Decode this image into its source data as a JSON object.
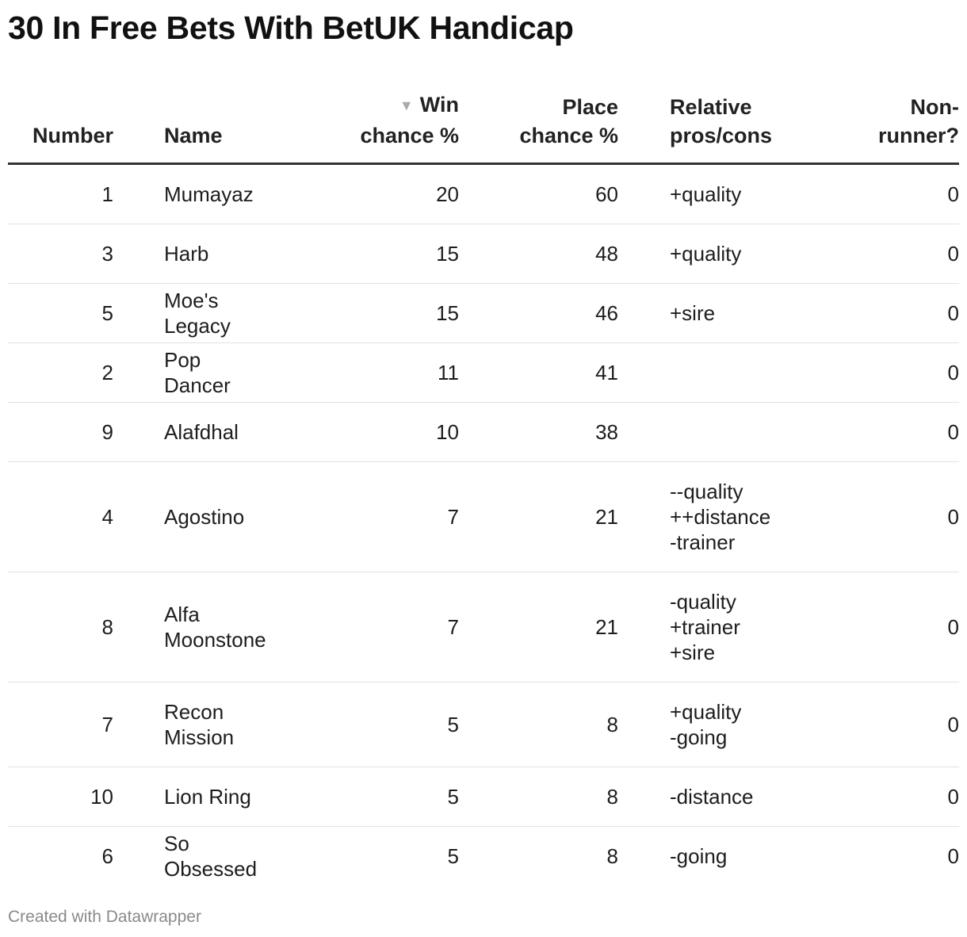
{
  "title": "30 In Free Bets With BetUK Handicap",
  "footer": "Created with Datawrapper",
  "chart_data": {
    "type": "table",
    "title": "30 In Free Bets With BetUK Handicap",
    "sorted_by": "Win chance %",
    "sort_direction": "descending",
    "columns": [
      {
        "key": "number",
        "label_lines": [
          "Number"
        ]
      },
      {
        "key": "name",
        "label_lines": [
          "Name"
        ]
      },
      {
        "key": "win",
        "label_lines": [
          "Win",
          "chance %"
        ]
      },
      {
        "key": "place",
        "label_lines": [
          "Place",
          "chance %"
        ]
      },
      {
        "key": "pros",
        "label_lines": [
          "Relative",
          "pros/cons"
        ]
      },
      {
        "key": "nr",
        "label_lines": [
          "Non-",
          "runner?"
        ]
      }
    ],
    "rows": [
      {
        "number": 1,
        "name": [
          "Mumayaz"
        ],
        "win": 20,
        "place": 60,
        "pros": [
          "+quality"
        ],
        "nr": 0
      },
      {
        "number": 3,
        "name": [
          "Harb"
        ],
        "win": 15,
        "place": 48,
        "pros": [
          "+quality"
        ],
        "nr": 0
      },
      {
        "number": 5,
        "name": [
          "Moe's Legacy"
        ],
        "win": 15,
        "place": 46,
        "pros": [
          "+sire"
        ],
        "nr": 0
      },
      {
        "number": 2,
        "name": [
          "Pop Dancer"
        ],
        "win": 11,
        "place": 41,
        "pros": [],
        "nr": 0
      },
      {
        "number": 9,
        "name": [
          "Alafdhal"
        ],
        "win": 10,
        "place": 38,
        "pros": [],
        "nr": 0
      },
      {
        "number": 4,
        "name": [
          "Agostino"
        ],
        "win": 7,
        "place": 21,
        "pros": [
          "--quality",
          "++distance",
          "-trainer"
        ],
        "nr": 0
      },
      {
        "number": 8,
        "name": [
          "Alfa",
          "Moonstone"
        ],
        "win": 7,
        "place": 21,
        "pros": [
          "-quality",
          "+trainer",
          "+sire"
        ],
        "nr": 0
      },
      {
        "number": 7,
        "name": [
          "Recon",
          "Mission"
        ],
        "win": 5,
        "place": 8,
        "pros": [
          "+quality",
          "-going"
        ],
        "nr": 0
      },
      {
        "number": 10,
        "name": [
          "Lion Ring"
        ],
        "win": 5,
        "place": 8,
        "pros": [
          "-distance"
        ],
        "nr": 0
      },
      {
        "number": 6,
        "name": [
          "So Obsessed"
        ],
        "win": 5,
        "place": 8,
        "pros": [
          "-going"
        ],
        "nr": 0
      }
    ]
  }
}
